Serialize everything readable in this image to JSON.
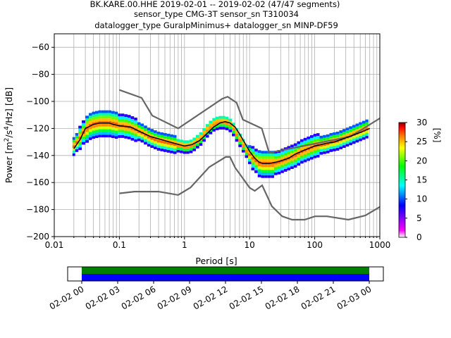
{
  "header": {
    "line1": "BK.KARE.00.HHE   2019-02-01 -- 2019-02-02  (47/47 segments)",
    "line2": "sensor_type CMG-3T sensor_sn T310034",
    "line3": "datalogger_type GuralpMinimus+ datalogger_sn MINP-DF59"
  },
  "chart_data": [
    {
      "type": "heatmap",
      "title": "BK.KARE.00.HHE   2019-02-01 -- 2019-02-02  (47/47 segments)",
      "xlabel": "Period [s]",
      "ylabel": "Power [m²/s⁴/Hz] [dB]",
      "ylabel_parts": {
        "main": "Power [m",
        "sup1": "2",
        "mid": "/s",
        "sup2": "4",
        "end": "/Hz] [dB]"
      },
      "x_scale": "log",
      "xlim": [
        0.01,
        1000
      ],
      "ylim": [
        -200,
        -50
      ],
      "x_ticks": [
        0.01,
        0.1,
        1,
        10,
        100,
        1000
      ],
      "x_tick_labels": [
        "0.01",
        "0.1",
        "1",
        "10",
        "100",
        "1000"
      ],
      "y_ticks": [
        -200,
        -180,
        -160,
        -140,
        -120,
        -100,
        -80,
        -60
      ],
      "y_tick_labels": [
        "−200",
        "−180",
        "−160",
        "−140",
        "−120",
        "−100",
        "−80",
        "−60"
      ],
      "grid": true,
      "colorbar": {
        "label": "[%]",
        "range": [
          0,
          30
        ],
        "ticks": [
          0,
          5,
          10,
          15,
          20,
          25,
          30
        ],
        "tick_labels": [
          "0",
          "5",
          "10",
          "15",
          "20",
          "25",
          "30"
        ],
        "colormap": [
          "#ffffff",
          "#ff00ff",
          "#0000ff",
          "#00ffff",
          "#00ff00",
          "#ffff00",
          "#ff8000",
          "#ff0000",
          "#800000"
        ]
      },
      "mean_curve": {
        "x": [
          0.02,
          0.025,
          0.03,
          0.04,
          0.05,
          0.06,
          0.07,
          0.08,
          0.1,
          0.15,
          0.2,
          0.3,
          0.5,
          0.7,
          1.0,
          1.3,
          1.7,
          2.2,
          2.8,
          3.5,
          4.2,
          5.0,
          6.0,
          7.0,
          8.5,
          10,
          12,
          14,
          16,
          18,
          20,
          25,
          30,
          40,
          50,
          70,
          100,
          150,
          200,
          300,
          500,
          700
        ],
        "y": [
          -135,
          -128,
          -120,
          -117,
          -116,
          -116,
          -116,
          -117,
          -118,
          -119,
          -122,
          -126,
          -129,
          -131,
          -133,
          -132,
          -129,
          -124,
          -119,
          -116,
          -115,
          -116,
          -119,
          -124,
          -131,
          -137,
          -142,
          -145,
          -146,
          -146,
          -146,
          -145,
          -144,
          -142,
          -139,
          -136,
          -133,
          -131,
          -130,
          -127,
          -123,
          -120
        ]
      },
      "noise_models": [
        {
          "x": [
            0.1,
            0.22,
            0.32,
            0.8,
            3.8,
            4.6,
            6.3,
            7.9,
            15.4,
            20,
            354.8,
            1000
          ],
          "y": [
            -91.5,
            -97.4,
            -110.5,
            -120,
            -98,
            -96.5,
            -101,
            -113.5,
            -120,
            -138,
            -126,
            -112.5
          ]
        },
        {
          "x": [
            0.1,
            0.17,
            0.4,
            0.8,
            1.24,
            2.4,
            4.3,
            5.0,
            6.0,
            10.0,
            12.0,
            15.6,
            21.9,
            31.6,
            45,
            70,
            101,
            154,
            328,
            600,
            1000
          ],
          "y": [
            -168,
            -166.7,
            -166.7,
            -169.2,
            -163.7,
            -148.6,
            -141.1,
            -141.1,
            -149,
            -163.8,
            -166.2,
            -162.1,
            -177.5,
            -185,
            -187.5,
            -187.5,
            -185,
            -185,
            -187.5,
            -184.4,
            -178
          ]
        }
      ],
      "psd_distribution": {
        "x": [
          0.02,
          0.022,
          0.025,
          0.028,
          0.032,
          0.036,
          0.04,
          0.045,
          0.05,
          0.056,
          0.063,
          0.071,
          0.08,
          0.09,
          0.1,
          0.112,
          0.126,
          0.141,
          0.159,
          0.178,
          0.2,
          0.224,
          0.252,
          0.283,
          0.317,
          0.356,
          0.4,
          0.449,
          0.504,
          0.566,
          0.635,
          0.713,
          0.8,
          0.898,
          1.0,
          1.12,
          1.26,
          1.41,
          1.59,
          1.78,
          2.0,
          2.24,
          2.52,
          2.83,
          3.17,
          3.56,
          4.0,
          4.49,
          5.04,
          5.66,
          6.35,
          7.13,
          8.0,
          8.98,
          10.0,
          11.2,
          12.6,
          14.1,
          15.9,
          17.8,
          20.0,
          22.4,
          25.2,
          28.3,
          31.7,
          35.6,
          40.0,
          44.9,
          50.4,
          56.6,
          63.5,
          71.3,
          80.0,
          89.8,
          101,
          112,
          126,
          141,
          159,
          178,
          200,
          224,
          252,
          283,
          317,
          356,
          400,
          449,
          504,
          566,
          635
        ],
        "center_db": [
          -133,
          -130,
          -127,
          -123,
          -120,
          -118,
          -117,
          -116.5,
          -116,
          -116,
          -116,
          -116,
          -116.5,
          -117,
          -118,
          -118,
          -118.5,
          -119,
          -120,
          -121,
          -122,
          -123,
          -124.5,
          -126,
          -127,
          -128,
          -129,
          -129.5,
          -130,
          -130.5,
          -131,
          -131.5,
          -132,
          -132.5,
          -133,
          -133,
          -132.5,
          -131,
          -129,
          -127,
          -124,
          -121,
          -118.5,
          -116.5,
          -115.5,
          -115,
          -115,
          -115.5,
          -117,
          -120,
          -124,
          -128,
          -132,
          -136,
          -139,
          -142,
          -144,
          -145.5,
          -146,
          -146,
          -146,
          -146,
          -145.5,
          -145,
          -144,
          -143,
          -142,
          -141,
          -140,
          -138.5,
          -137,
          -136,
          -135,
          -134,
          -133,
          -132.5,
          -132,
          -131.5,
          -131,
          -130,
          -129.5,
          -129,
          -128,
          -127,
          -126,
          -125,
          -124,
          -123,
          -122,
          -121,
          -120
        ],
        "spread_db": [
          4,
          4,
          5,
          5,
          6,
          6,
          6,
          6,
          6,
          6,
          6,
          6,
          6,
          6,
          5,
          5,
          5,
          5,
          5,
          5,
          4,
          4,
          4,
          4,
          4,
          4,
          4,
          4,
          4,
          4,
          4,
          4,
          3,
          3,
          3,
          3,
          3,
          3,
          3,
          3,
          3,
          3,
          3,
          3,
          3,
          3,
          3,
          3,
          3,
          3,
          3,
          3,
          3,
          3,
          4,
          5,
          5,
          6,
          6,
          6,
          6,
          6,
          5,
          5,
          5,
          5,
          5,
          5,
          5,
          5,
          5,
          5,
          5,
          5,
          5,
          5,
          4,
          4,
          4,
          4,
          4,
          4,
          4,
          4,
          4,
          4,
          4,
          4,
          4,
          4,
          4
        ]
      }
    },
    {
      "type": "timeline",
      "xlim": [
        "02-02 00",
        "02-03 00"
      ],
      "x_ticks": [
        "02-02 00",
        "02-02 03",
        "02-02 06",
        "02-02 09",
        "02-02 12",
        "02-02 15",
        "02-02 18",
        "02-02 21",
        "02-03 00"
      ],
      "coverage": [
        {
          "start": "02-02 00",
          "end": "02-03 00",
          "color": "#008000"
        },
        {
          "start": "02-02 00",
          "end": "02-03 00",
          "color": "#0000ff"
        }
      ]
    }
  ]
}
